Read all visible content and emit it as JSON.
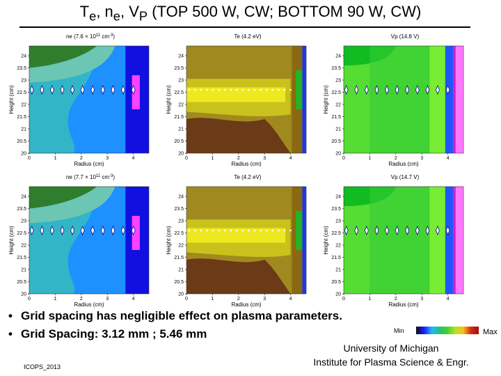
{
  "title": {
    "text": "T",
    "sub_e1": "e",
    "sep1": ", n",
    "sub_e2": "e",
    "sep2": ", V",
    "sub_p": "P",
    "rest": " (TOP 500 W, CW;  BOTTOM 90 W, CW)"
  },
  "panels": [
    {
      "label": "n_e (7.6 × 10^11 cm^-3)",
      "title": "ne (7.6 × 10",
      "exp": "11",
      "unit": " cm",
      "unit_exp": "-3",
      "unit_close": ")",
      "scheme": "ne"
    },
    {
      "label": "T_e (4.2 eV)",
      "title": "Te (4.2 eV)",
      "exp": "",
      "unit": "",
      "unit_exp": "",
      "unit_close": "",
      "scheme": "te"
    },
    {
      "label": "V_P (14.8 V)",
      "title": "Vp (14.8 V)",
      "exp": "",
      "unit": "",
      "unit_exp": "",
      "unit_close": "",
      "scheme": "vp"
    },
    {
      "label": "n_e (7.7 × 10^11 cm^-3)",
      "title": "ne (7.7 × 10",
      "exp": "11",
      "unit": " cm",
      "unit_exp": "-3",
      "unit_close": ")",
      "scheme": "ne"
    },
    {
      "label": "T_e (4.2 eV)",
      "title": "Te (4.2 eV)",
      "exp": "",
      "unit": "",
      "unit_exp": "",
      "unit_close": "",
      "scheme": "te"
    },
    {
      "label": "V_P (14.7 V)",
      "title": "Vp (14.7 V)",
      "exp": "",
      "unit": "",
      "unit_exp": "",
      "unit_close": "",
      "scheme": "vp"
    }
  ],
  "axes": {
    "xlabel": "Radius (cm)",
    "ylabel": "Height (cm)",
    "xticks": [
      "0",
      "1",
      "2",
      "3",
      "4"
    ],
    "yticks": [
      "24",
      "23.5",
      "23",
      "22.5",
      "22",
      "21.5",
      "21",
      "20.5",
      "20"
    ],
    "xlim": [
      0,
      4.6
    ],
    "ylim": [
      20,
      24.4
    ]
  },
  "colors": {
    "ne": [
      "#2e7e2e",
      "#4ea46a",
      "#6cc6b4",
      "#33b5c8",
      "#1e90ff",
      "#1010e0",
      "#ff40ff"
    ],
    "te": [
      "#6b3a16",
      "#8a6a10",
      "#a08a20",
      "#c9c21c",
      "#eee820",
      "#25b225",
      "#2038e0"
    ],
    "vp": [
      "#11bb22",
      "#33cc33",
      "#55dd33",
      "#77ee33",
      "#2255ff",
      "#cc22cc",
      "#ff77ff"
    ]
  },
  "bullets": [
    "Grid spacing has negligible effect on plasma parameters.",
    "Grid Spacing: 3.12 mm ; 5.46 mm"
  ],
  "legend": {
    "min": "Min",
    "max": "Max",
    "colors": [
      "#101010",
      "#1a1aff",
      "#26b4ff",
      "#22c27a",
      "#44d12a",
      "#b7e024",
      "#f4c21c",
      "#d42a14",
      "#a01010"
    ]
  },
  "affiliation": [
    "University of Michigan",
    "Institute for Plasma Science & Engr."
  ],
  "conference": "ICOPS_2013"
}
